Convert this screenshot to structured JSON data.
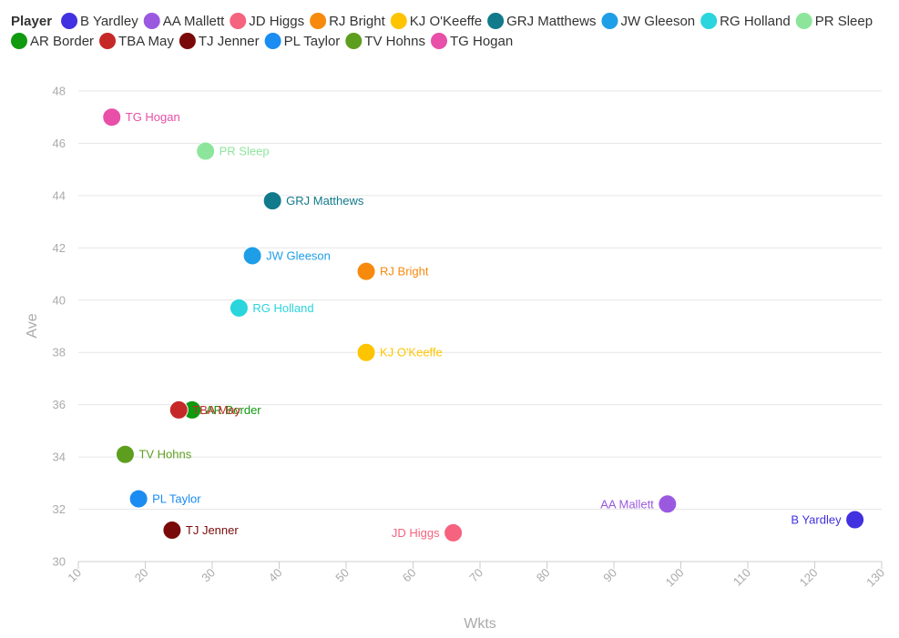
{
  "chart_data": {
    "type": "scatter",
    "legend_title": "Player",
    "legend_position": "top",
    "xlabel": "Wkts",
    "ylabel": "Ave",
    "xlim": [
      10,
      130
    ],
    "ylim": [
      30,
      48
    ],
    "xticks": [
      10,
      20,
      30,
      40,
      50,
      60,
      70,
      80,
      90,
      100,
      110,
      120,
      130
    ],
    "yticks": [
      30,
      32,
      34,
      36,
      38,
      40,
      42,
      44,
      46,
      48
    ],
    "grid": true,
    "series": [
      {
        "name": "B Yardley",
        "color": "#4131e0",
        "x": 126,
        "y": 31.6,
        "label_side": "left"
      },
      {
        "name": "AA Mallett",
        "color": "#9b59e0",
        "x": 98,
        "y": 32.2,
        "label_side": "left"
      },
      {
        "name": "JD Higgs",
        "color": "#f5637e",
        "x": 66,
        "y": 31.1,
        "label_side": "left"
      },
      {
        "name": "RJ Bright",
        "color": "#f78a0c",
        "x": 53,
        "y": 41.1,
        "label_side": "right"
      },
      {
        "name": "KJ O'Keeffe",
        "color": "#ffc400",
        "x": 53,
        "y": 38.0,
        "label_side": "right"
      },
      {
        "name": "GRJ Matthews",
        "color": "#117a8b",
        "x": 39,
        "y": 43.8,
        "label_side": "right"
      },
      {
        "name": "JW Gleeson",
        "color": "#1f9ee8",
        "x": 36,
        "y": 41.7,
        "label_side": "right"
      },
      {
        "name": "RG Holland",
        "color": "#2ad5dd",
        "x": 34,
        "y": 39.7,
        "label_side": "right"
      },
      {
        "name": "PR Sleep",
        "color": "#8de59c",
        "x": 29,
        "y": 45.7,
        "label_side": "right"
      },
      {
        "name": "AR Border",
        "color": "#0f9a0f",
        "x": 27,
        "y": 35.8,
        "label_side": "right"
      },
      {
        "name": "TBA May",
        "color": "#c62828",
        "x": 25,
        "y": 35.8,
        "label_side": "right"
      },
      {
        "name": "TJ Jenner",
        "color": "#7a0a0a",
        "x": 24,
        "y": 31.2,
        "label_side": "right"
      },
      {
        "name": "PL Taylor",
        "color": "#1a8cf2",
        "x": 19,
        "y": 32.4,
        "label_side": "right"
      },
      {
        "name": "TV Hohns",
        "color": "#5e9e1f",
        "x": 17,
        "y": 34.1,
        "label_side": "right"
      },
      {
        "name": "TG Hogan",
        "color": "#e84fa8",
        "x": 15,
        "y": 47.0,
        "label_side": "right"
      }
    ]
  }
}
